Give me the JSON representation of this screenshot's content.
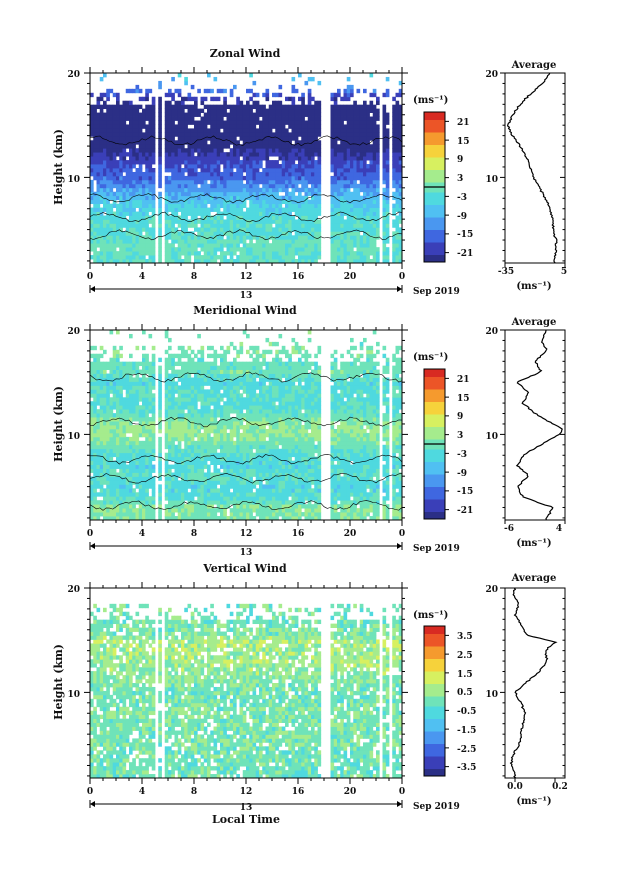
{
  "figure": {
    "date_label": "Sep 2019",
    "day_label": "13",
    "xlabel": "Local Time"
  },
  "chart_data": [
    {
      "type": "heatmap",
      "title": "Zonal Wind",
      "ylabel": "Height (km)",
      "xlabel": "",
      "x_ticks": [
        "0",
        "4",
        "8",
        "12",
        "16",
        "20",
        "0"
      ],
      "xlim": [
        0,
        24
      ],
      "y_ticks": [
        "20",
        "10"
      ],
      "ylim": [
        1.8,
        20
      ],
      "unit": "(ms⁻¹)",
      "colorbar_ticks": [
        "21",
        "15",
        "9",
        "3",
        "-3",
        "-9",
        "-15",
        "-21"
      ],
      "colorbar_range": [
        -24,
        24
      ],
      "zero_line": true,
      "data_gaps_hours": [
        [
          5.0,
          5.25
        ],
        [
          5.5,
          5.75
        ],
        [
          17.8,
          18.4
        ],
        [
          22.3,
          22.5
        ],
        [
          23.0,
          23.2
        ]
      ],
      "profile": [
        [
          -2,
          2.0
        ],
        [
          -1,
          3.0
        ],
        [
          -1,
          4.0
        ],
        [
          -3,
          5.0
        ],
        [
          -3,
          6.0
        ],
        [
          -5,
          7.0
        ],
        [
          -8,
          8.0
        ],
        [
          -12,
          9.0
        ],
        [
          -16,
          10.0
        ],
        [
          -18,
          11.0
        ],
        [
          -21,
          12.0
        ],
        [
          -25,
          13.0
        ],
        [
          -30,
          14.0
        ],
        [
          -33,
          15.0
        ],
        [
          -30,
          16.0
        ],
        [
          -25,
          17.0
        ],
        [
          -18,
          18.0
        ],
        [
          -10,
          19.0
        ],
        [
          -5,
          20.0
        ]
      ]
    },
    {
      "type": "heatmap",
      "title": "Meridional Wind",
      "ylabel": "Height (km)",
      "xlabel": "",
      "x_ticks": [
        "0",
        "4",
        "8",
        "12",
        "16",
        "20",
        "0"
      ],
      "xlim": [
        0,
        24
      ],
      "y_ticks": [
        "20",
        "10"
      ],
      "ylim": [
        1.8,
        20
      ],
      "unit": "(ms⁻¹)",
      "colorbar_ticks": [
        "21",
        "15",
        "9",
        "3",
        "-3",
        "-9",
        "-15",
        "-21"
      ],
      "colorbar_range": [
        -24,
        24
      ],
      "zero_line": true,
      "data_gaps_hours": [
        [
          5.0,
          5.25
        ],
        [
          5.5,
          5.75
        ],
        [
          17.8,
          18.4
        ],
        [
          22.3,
          22.5
        ],
        [
          23.0,
          23.2
        ]
      ],
      "profile": [
        [
          1,
          2.0
        ],
        [
          2,
          3.0
        ],
        [
          -3,
          4.0
        ],
        [
          -4,
          5.0
        ],
        [
          -2,
          6.0
        ],
        [
          -4,
          7.0
        ],
        [
          -3,
          8.0
        ],
        [
          0,
          9.0
        ],
        [
          3,
          10.0
        ],
        [
          3.5,
          10.5
        ],
        [
          2,
          11.0
        ],
        [
          -1,
          12.0
        ],
        [
          -3,
          13.0
        ],
        [
          -2,
          14.0
        ],
        [
          -4,
          15.0
        ],
        [
          0,
          16.0
        ],
        [
          -1,
          17.0
        ],
        [
          1,
          18.0
        ],
        [
          0,
          19.0
        ],
        [
          1,
          20.0
        ]
      ]
    },
    {
      "type": "heatmap",
      "title": "Vertical Wind",
      "ylabel": "Height (km)",
      "xlabel": "Local Time",
      "x_ticks": [
        "0",
        "4",
        "8",
        "12",
        "16",
        "20",
        "0"
      ],
      "xlim": [
        0,
        24
      ],
      "y_ticks": [
        "20",
        "10"
      ],
      "ylim": [
        1.8,
        20
      ],
      "unit": "(ms⁻¹)",
      "colorbar_ticks": [
        "3.5",
        "2.5",
        "1.5",
        "0.5",
        "-0.5",
        "-1.5",
        "-2.5",
        "-3.5"
      ],
      "colorbar_range": [
        -4,
        4
      ],
      "zero_line": false,
      "data_gaps_hours": [
        [
          5.0,
          5.25
        ],
        [
          5.5,
          5.75
        ],
        [
          17.8,
          18.4
        ],
        [
          22.3,
          22.5
        ],
        [
          23.0,
          23.2
        ]
      ],
      "profile": [
        [
          0.0,
          2.0
        ],
        [
          -0.02,
          3.0
        ],
        [
          -0.01,
          4.0
        ],
        [
          0.02,
          5.0
        ],
        [
          0.03,
          6.0
        ],
        [
          0.04,
          7.0
        ],
        [
          0.05,
          8.0
        ],
        [
          0.03,
          9.0
        ],
        [
          0.0,
          10.0
        ],
        [
          0.06,
          11.0
        ],
        [
          0.12,
          12.0
        ],
        [
          0.16,
          13.0
        ],
        [
          0.15,
          14.0
        ],
        [
          0.2,
          14.8
        ],
        [
          0.06,
          15.5
        ],
        [
          0.03,
          16.5
        ],
        [
          0.0,
          17.5
        ],
        [
          0.02,
          18.5
        ],
        [
          -0.01,
          19.5
        ],
        [
          0.0,
          20.0
        ]
      ]
    }
  ],
  "averages": [
    {
      "title": "Average",
      "x_ticks": [
        "-35",
        "5"
      ],
      "xlim": [
        -35,
        5
      ],
      "y_ticks": [
        "20",
        "10"
      ],
      "unit": "(ms⁻¹)"
    },
    {
      "title": "Average",
      "x_ticks": [
        "-6",
        "4"
      ],
      "xlim": [
        -6,
        4
      ],
      "y_ticks": [
        "20",
        "10"
      ],
      "unit": "(ms⁻¹)"
    },
    {
      "title": "Average",
      "x_ticks": [
        "0.0",
        "0.2"
      ],
      "xlim": [
        -0.05,
        0.25
      ],
      "y_ticks": [
        "20",
        "10"
      ],
      "unit": "(ms⁻¹)"
    }
  ]
}
